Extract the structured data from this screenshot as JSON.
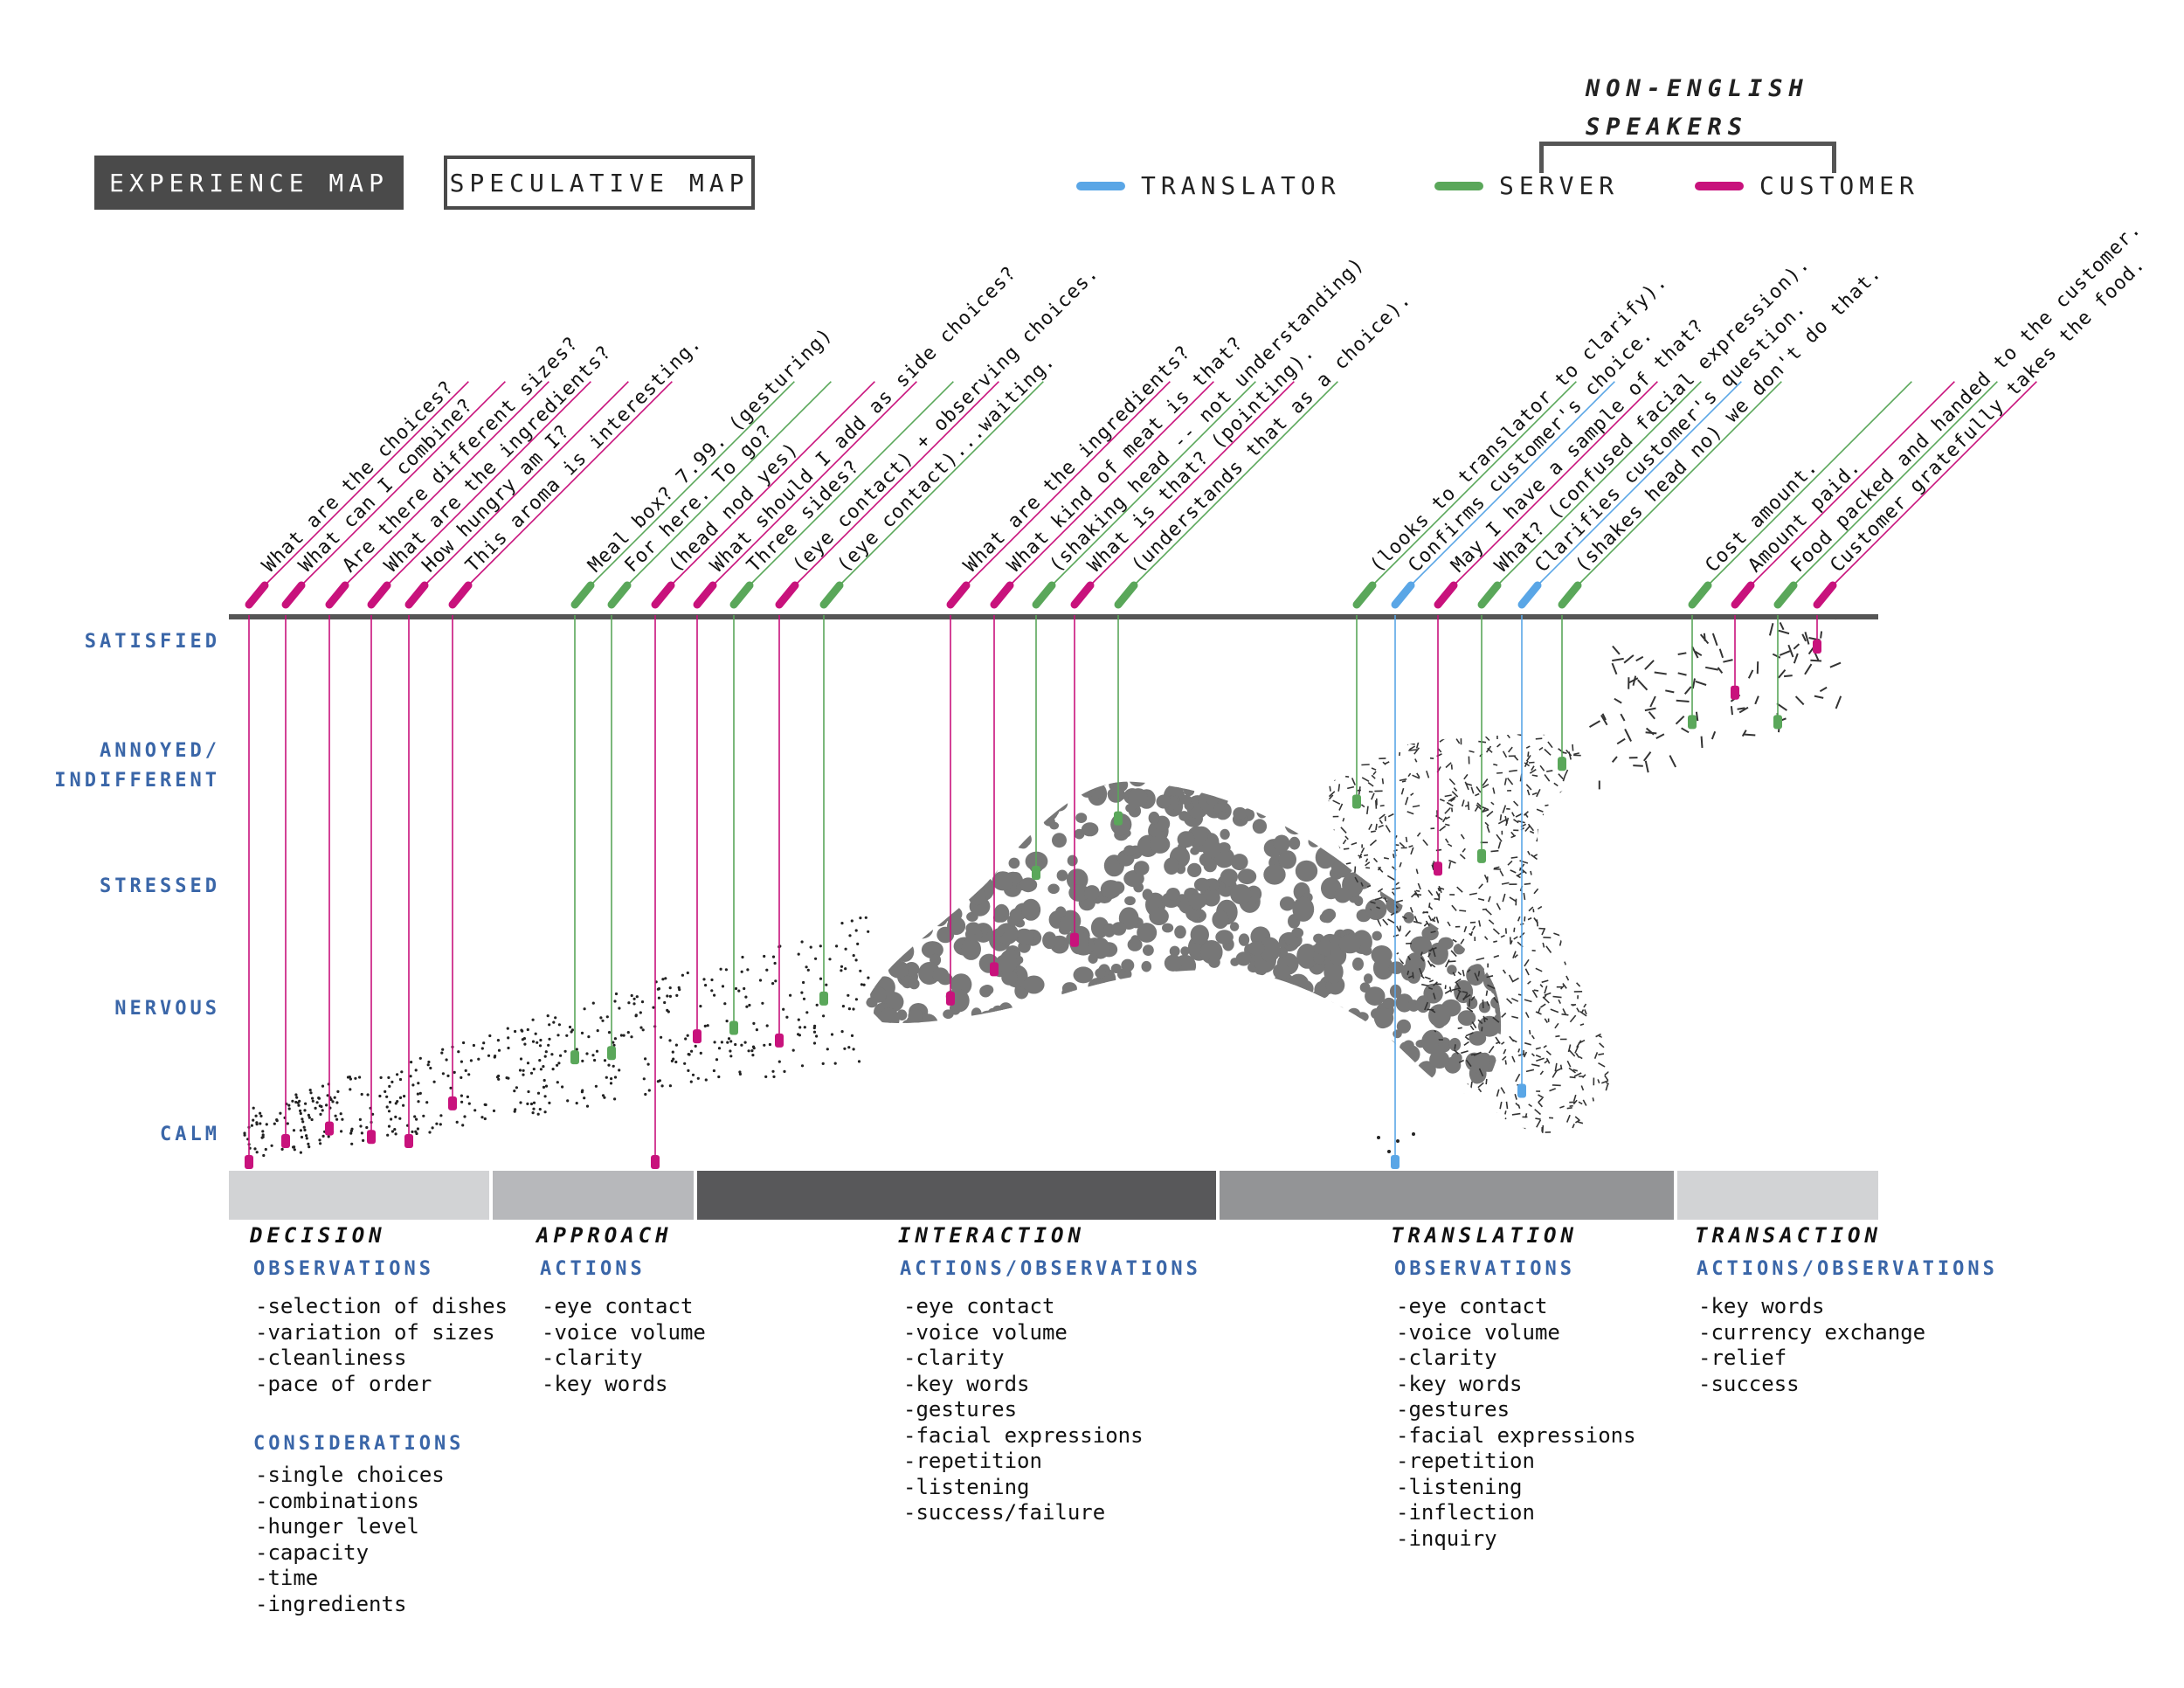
{
  "tabs": {
    "experience": "EXPERIENCE MAP",
    "speculative": "SPECULATIVE MAP"
  },
  "legend": {
    "group_label": "NON-ENGLISH SPEAKERS",
    "items": [
      {
        "label": "TRANSLATOR",
        "color": "#5aa6e6"
      },
      {
        "label": "SERVER",
        "color": "#5aa75a"
      },
      {
        "label": "CUSTOMER",
        "color": "#c8127c"
      }
    ]
  },
  "emotions": [
    "SATISFIED",
    "ANNOYED/ INDIFFERENT",
    "STRESSED",
    "NERVOUS",
    "CALM"
  ],
  "colors": {
    "customer": "#c8127c",
    "server": "#5aa75a",
    "translator": "#5aa6e6",
    "axis": "#555555"
  },
  "quotes": [
    {
      "text": "What are the choices?",
      "role": "customer",
      "level": 0.0
    },
    {
      "text": "What can I combine?",
      "role": "customer",
      "level": 0.05
    },
    {
      "text": "Are there different sizes?",
      "role": "customer",
      "level": 0.08
    },
    {
      "text": "What are the ingredients?",
      "role": "customer",
      "level": 0.06
    },
    {
      "text": "How hungry am I?",
      "role": "customer",
      "level": 0.05
    },
    {
      "text": "This aroma is interesting.",
      "role": "customer",
      "level": 0.14
    },
    {
      "text": "Meal box? 7.99. (gesturing)",
      "role": "server",
      "level": 0.25
    },
    {
      "text": "For here. To go?",
      "role": "server",
      "level": 0.26
    },
    {
      "text": "(head nod yes)",
      "role": "customer",
      "level": 0.0
    },
    {
      "text": "What should I add as side choices?",
      "role": "customer",
      "level": 0.3
    },
    {
      "text": "Three sides?",
      "role": "server",
      "level": 0.32
    },
    {
      "text": "(eye contact) + observing choices.",
      "role": "customer",
      "level": 0.29
    },
    {
      "text": "(eye contact)...waiting.",
      "role": "server",
      "level": 0.39
    },
    {
      "text": "What are the ingredients?",
      "role": "customer",
      "level": 0.39
    },
    {
      "text": "What kind of meat is that?",
      "role": "customer",
      "level": 0.46
    },
    {
      "text": "(shaking head -- not understanding)",
      "role": "server",
      "level": 0.69
    },
    {
      "text": "What is that? (pointing).",
      "role": "customer",
      "level": 0.53
    },
    {
      "text": "(understands that as a choice).",
      "role": "server",
      "level": 0.82
    },
    {
      "text": "(looks to translator to clarify).",
      "role": "server",
      "level": 0.86
    },
    {
      "text": "Confirms customer's choice.",
      "role": "translator",
      "level": 0.0
    },
    {
      "text": "May I have a sample of that?",
      "role": "customer",
      "level": 0.7
    },
    {
      "text": "What? (confused facial expression).",
      "role": "server",
      "level": 0.73
    },
    {
      "text": "Clarifies customer's question.",
      "role": "translator",
      "level": 0.17
    },
    {
      "text": "(shakes head no) we don't do that.",
      "role": "server",
      "level": 0.95
    },
    {
      "text": "Cost amount.",
      "role": "server",
      "level": 1.05
    },
    {
      "text": "Amount paid.",
      "role": "customer",
      "level": 1.12
    },
    {
      "text": "Food packed and handed to the customer.",
      "role": "server",
      "level": 1.05
    },
    {
      "text": "Customer gratefully takes the food.",
      "role": "customer",
      "level": 1.23
    }
  ],
  "phases": [
    {
      "title": "DECISION",
      "color": "#d2d3d5",
      "sections": [
        {
          "heading": "OBSERVATIONS",
          "items": [
            "-selection of dishes",
            "-variation of sizes",
            "-cleanliness",
            "-pace of order"
          ]
        },
        {
          "heading": "CONSIDERATIONS",
          "items": [
            "-single choices",
            "-combinations",
            "-hunger level",
            "-capacity",
            "-time",
            "-ingredients"
          ]
        }
      ]
    },
    {
      "title": "APPROACH",
      "color": "#b7b8bb",
      "sections": [
        {
          "heading": "ACTIONS",
          "items": [
            "-eye contact",
            "-voice volume",
            "-clarity",
            "-key words"
          ]
        }
      ]
    },
    {
      "title": "INTERACTION",
      "color": "#58585a",
      "sections": [
        {
          "heading": "ACTIONS/OBSERVATIONS",
          "items": [
            "-eye contact",
            "-voice volume",
            "-clarity",
            "-key words",
            "-gestures",
            "-facial expressions",
            "-repetition",
            "-listening",
            "-success/failure"
          ]
        }
      ]
    },
    {
      "title": "TRANSLATION",
      "color": "#939496",
      "sections": [
        {
          "heading": "OBSERVATIONS",
          "items": [
            "-eye contact",
            "-voice volume",
            "-clarity",
            "-key words",
            "-gestures",
            "-facial expressions",
            "-repetition",
            "-listening",
            "-inflection",
            "-inquiry"
          ]
        }
      ]
    },
    {
      "title": "TRANSACTION",
      "color": "#d2d3d5",
      "sections": [
        {
          "heading": "ACTIONS/OBSERVATIONS",
          "items": [
            "-key words",
            "-currency exchange",
            "-relief",
            "-success"
          ]
        }
      ]
    }
  ]
}
